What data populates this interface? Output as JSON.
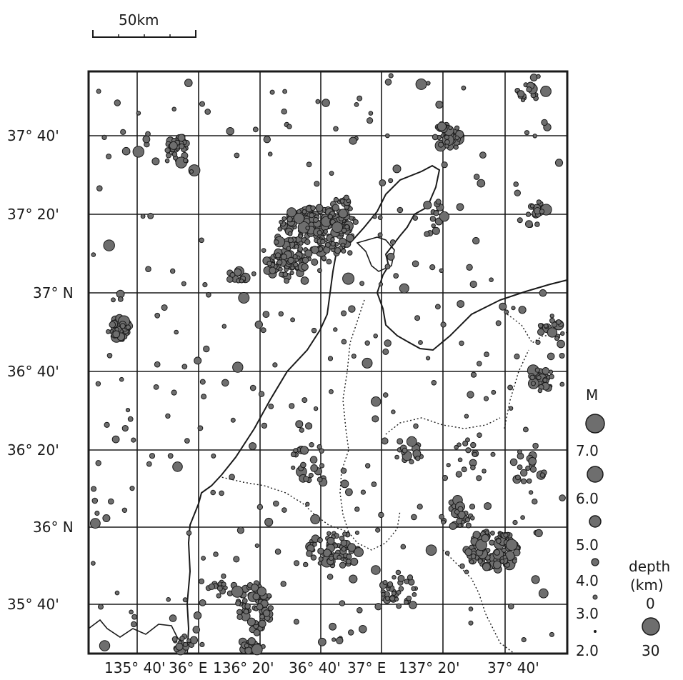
{
  "scale_bar": {
    "label": "50km"
  },
  "latitude_labels": [
    "37° 40'",
    "37° 20'",
    "37° N",
    "36° 40'",
    "36° 20'",
    "36° N",
    "35° 40'"
  ],
  "longitude_labels": [
    "135° 40'",
    "36° E",
    "136° 20'",
    "36° 40'",
    "37° E",
    "137° 20'",
    "37° 40'"
  ],
  "magnitude_legend": {
    "title": "M",
    "levels": [
      "7.0",
      "6.0",
      "5.0",
      "4.0",
      "3.0",
      "2.0"
    ]
  },
  "depth_legend": {
    "title_line1": "depth",
    "title_line2": "(km)",
    "min": "0",
    "max": "30"
  },
  "colors": {
    "ink": "#1a1a1a",
    "quake_fill": "#6e6e6e",
    "paper": "#ffffff"
  }
}
